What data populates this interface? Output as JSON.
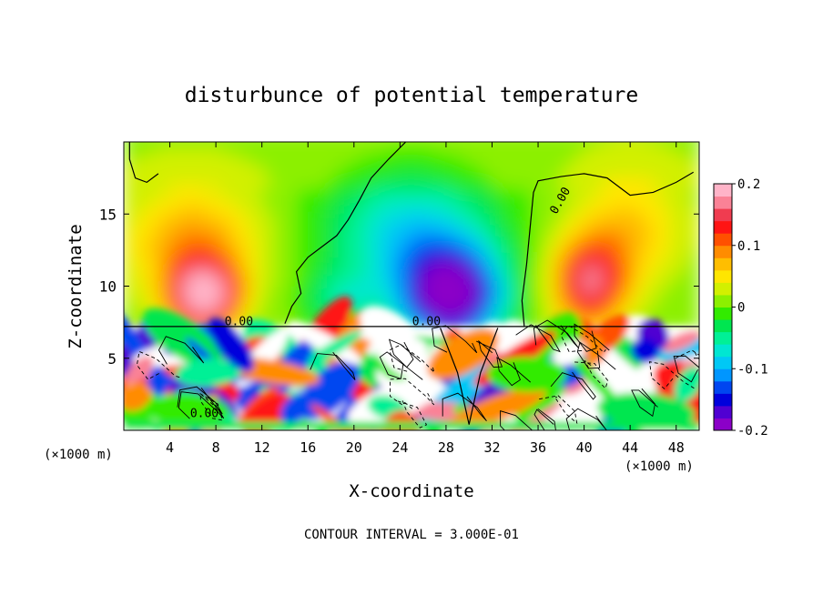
{
  "chart_data": {
    "type": "heatmap",
    "title": "disturbunce of potential temperature",
    "xlabel": "X-coordinate",
    "ylabel": "Z-coordinate",
    "x_unit_label": "(×1000 m)",
    "x_unit_label_right": "(×1000 m)",
    "footer": "CONTOUR INTERVAL = 3.000E-01",
    "xlim": [
      0,
      50
    ],
    "ylim": [
      0,
      20
    ],
    "x_ticks": [
      4,
      8,
      12,
      16,
      20,
      24,
      28,
      32,
      36,
      40,
      44,
      48
    ],
    "y_ticks": [
      5,
      10,
      15
    ],
    "colorbar": {
      "range": [
        -0.2,
        0.2
      ],
      "tick_values": [
        0.2,
        0.1,
        0,
        -0.1,
        -0.2
      ],
      "tick_labels": [
        "0.2",
        "0.1",
        "0",
        "-0.1",
        "-0.2"
      ],
      "colors": [
        "#8b00c8",
        "#5000d2",
        "#0000dc",
        "#0046f0",
        "#0096ff",
        "#00c8f5",
        "#00e6d2",
        "#00f096",
        "#00e650",
        "#32eb00",
        "#8cf000",
        "#d2f000",
        "#ffe600",
        "#ffbe00",
        "#ff8c00",
        "#ff5000",
        "#ff1414",
        "#f03c50",
        "#fa8296",
        "#ffb4c8"
      ]
    },
    "contour_labels": [
      "0.00",
      "0.00",
      "0.00",
      "0.00"
    ],
    "boundary_z": 7.2,
    "features": [
      {
        "kind": "warm_anomaly",
        "x": 7,
        "z": 9.5,
        "value": 0.2
      },
      {
        "kind": "cold_anomaly",
        "x": 29,
        "z": 9.5,
        "value": -0.2
      },
      {
        "kind": "warm_anomaly",
        "x": 40,
        "z": 10,
        "value": 0.15
      },
      {
        "kind": "cold_anomaly",
        "x": 24,
        "z": 13,
        "value": -0.08
      }
    ]
  }
}
